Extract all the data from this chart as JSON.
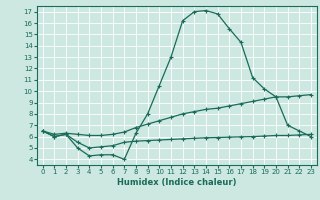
{
  "xlabel": "Humidex (Indice chaleur)",
  "xlim": [
    -0.5,
    23.5
  ],
  "ylim": [
    3.5,
    17.5
  ],
  "xticks": [
    0,
    1,
    2,
    3,
    4,
    5,
    6,
    7,
    8,
    9,
    10,
    11,
    12,
    13,
    14,
    15,
    16,
    17,
    18,
    19,
    20,
    21,
    22,
    23
  ],
  "yticks": [
    4,
    5,
    6,
    7,
    8,
    9,
    10,
    11,
    12,
    13,
    14,
    15,
    16,
    17
  ],
  "bg_color": "#cce8e0",
  "line_color": "#1a6b5a",
  "line1_x": [
    0,
    1,
    2,
    3,
    4,
    5,
    6,
    7,
    8,
    9,
    10,
    11,
    12,
    13,
    14,
    15,
    16,
    17,
    18,
    19,
    20,
    21,
    22,
    23
  ],
  "line1_y": [
    6.5,
    6.0,
    6.2,
    5.0,
    4.3,
    4.4,
    4.4,
    4.0,
    6.3,
    8.0,
    10.5,
    13.0,
    16.2,
    17.0,
    17.1,
    16.8,
    15.5,
    14.3,
    11.2,
    10.2,
    9.5,
    7.0,
    6.5,
    6.0
  ],
  "line2_x": [
    0,
    1,
    2,
    3,
    4,
    5,
    6,
    7,
    8,
    9,
    10,
    11,
    12,
    13,
    14,
    15,
    16,
    17,
    18,
    19,
    20,
    21,
    22,
    23
  ],
  "line2_y": [
    6.5,
    6.2,
    6.3,
    6.2,
    6.1,
    6.1,
    6.2,
    6.4,
    6.8,
    7.1,
    7.4,
    7.7,
    8.0,
    8.2,
    8.4,
    8.5,
    8.7,
    8.9,
    9.1,
    9.3,
    9.5,
    9.5,
    9.6,
    9.7
  ],
  "line3_x": [
    0,
    1,
    2,
    3,
    4,
    5,
    6,
    7,
    8,
    9,
    10,
    11,
    12,
    13,
    14,
    15,
    16,
    17,
    18,
    19,
    20,
    21,
    22,
    23
  ],
  "line3_y": [
    6.5,
    6.0,
    6.2,
    5.5,
    5.0,
    5.1,
    5.2,
    5.5,
    5.6,
    5.65,
    5.7,
    5.75,
    5.8,
    5.85,
    5.9,
    5.92,
    5.95,
    5.98,
    6.0,
    6.05,
    6.1,
    6.1,
    6.15,
    6.2
  ]
}
